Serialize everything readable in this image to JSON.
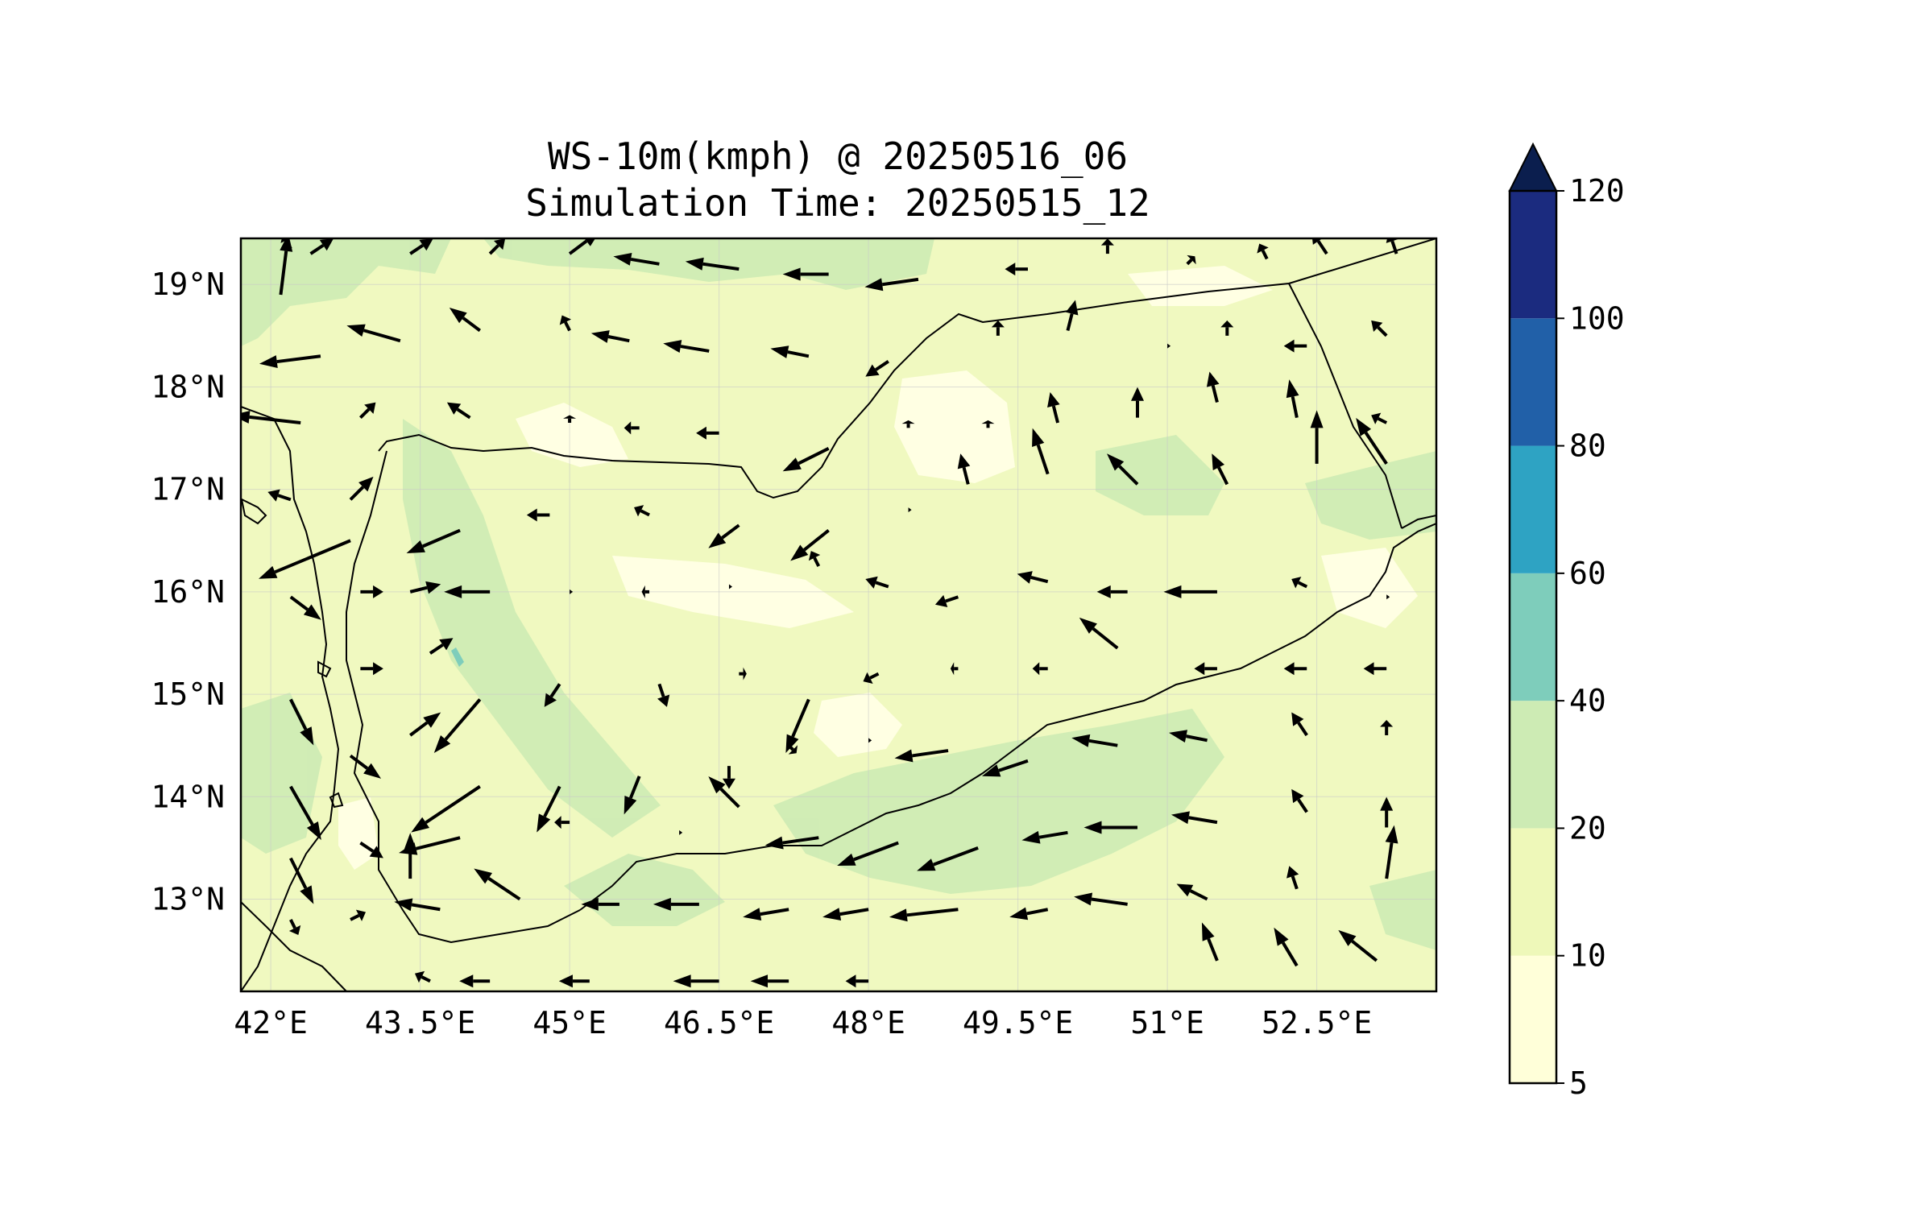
{
  "title": {
    "line1": "WS-10m(kmph) @ 20250516_06",
    "line2": "Simulation Time: 20250515_12"
  },
  "map": {
    "lon_range": [
      41.7,
      53.7
    ],
    "lat_range": [
      12.1,
      19.45
    ],
    "lon_ticks": [
      42,
      43.5,
      45,
      46.5,
      48,
      49.5,
      51,
      52.5
    ],
    "lon_tick_labels": [
      "42°E",
      "43.5°E",
      "45°E",
      "46.5°E",
      "48°E",
      "49.5°E",
      "51°E",
      "52.5°E"
    ],
    "lat_ticks": [
      13,
      14,
      15,
      16,
      17,
      18,
      19
    ],
    "lat_tick_labels": [
      "13°N",
      "14°N",
      "15°N",
      "16°N",
      "17°N",
      "18°N",
      "19°N"
    ],
    "background_color": "#f0f9c0"
  },
  "colorbar": {
    "levels": [
      5,
      10,
      20,
      40,
      60,
      80,
      100,
      120
    ],
    "labels": [
      "5",
      "10",
      "20",
      "40",
      "60",
      "80",
      "100",
      "120"
    ],
    "colors": [
      "#ffffd9",
      "#eef8b9",
      "#cdebb4",
      "#7ecdbb",
      "#2ea3c3",
      "#2160a8",
      "#1b2b7f"
    ],
    "extend_color": "#0b1e4e"
  },
  "wind_vectors": [
    {
      "lon": 42.1,
      "lat": 18.9,
      "u": 1,
      "v": 8
    },
    {
      "lon": 42.5,
      "lat": 18.3,
      "u": -8,
      "v": -1
    },
    {
      "lon": 43.3,
      "lat": 18.45,
      "u": -7,
      "v": 2
    },
    {
      "lon": 44.1,
      "lat": 18.55,
      "u": -4,
      "v": 3
    },
    {
      "lon": 45.0,
      "lat": 18.55,
      "u": -1,
      "v": 2
    },
    {
      "lon": 45.6,
      "lat": 18.45,
      "u": -5,
      "v": 1
    },
    {
      "lon": 46.4,
      "lat": 18.35,
      "u": -6,
      "v": 1
    },
    {
      "lon": 47.4,
      "lat": 18.3,
      "u": -5,
      "v": 1
    },
    {
      "lon": 48.2,
      "lat": 18.25,
      "u": -3,
      "v": -2
    },
    {
      "lon": 49.3,
      "lat": 18.5,
      "u": 0,
      "v": 2
    },
    {
      "lon": 50.0,
      "lat": 18.55,
      "u": 1,
      "v": 4
    },
    {
      "lon": 51.0,
      "lat": 18.4,
      "u": 0,
      "v": 0
    },
    {
      "lon": 51.6,
      "lat": 18.5,
      "u": 0,
      "v": 2
    },
    {
      "lon": 52.4,
      "lat": 18.4,
      "u": -3,
      "v": 0
    },
    {
      "lon": 53.2,
      "lat": 18.5,
      "u": -2,
      "v": 2
    },
    {
      "lon": 42.2,
      "lat": 19.35,
      "u": -1,
      "v": 2
    },
    {
      "lon": 42.4,
      "lat": 19.3,
      "u": 3,
      "v": 2
    },
    {
      "lon": 43.4,
      "lat": 19.3,
      "u": 3,
      "v": 2
    },
    {
      "lon": 44.2,
      "lat": 19.3,
      "u": 2,
      "v": 2
    },
    {
      "lon": 45.0,
      "lat": 19.3,
      "u": 4,
      "v": 3
    },
    {
      "lon": 45.9,
      "lat": 19.2,
      "u": -6,
      "v": 1
    },
    {
      "lon": 46.7,
      "lat": 19.15,
      "u": -7,
      "v": 1
    },
    {
      "lon": 47.6,
      "lat": 19.1,
      "u": -6,
      "v": 0
    },
    {
      "lon": 48.5,
      "lat": 19.05,
      "u": -7,
      "v": -1
    },
    {
      "lon": 49.6,
      "lat": 19.15,
      "u": -3,
      "v": 0
    },
    {
      "lon": 50.4,
      "lat": 19.3,
      "u": 0,
      "v": 2
    },
    {
      "lon": 51.2,
      "lat": 19.2,
      "u": 1,
      "v": 1
    },
    {
      "lon": 52.0,
      "lat": 19.25,
      "u": -1,
      "v": 2
    },
    {
      "lon": 52.6,
      "lat": 19.3,
      "u": -2,
      "v": 3
    },
    {
      "lon": 53.3,
      "lat": 19.3,
      "u": -1,
      "v": 3
    },
    {
      "lon": 42.3,
      "lat": 17.65,
      "u": -9,
      "v": 1
    },
    {
      "lon": 42.9,
      "lat": 17.7,
      "u": 2,
      "v": 2
    },
    {
      "lon": 44.0,
      "lat": 17.7,
      "u": -3,
      "v": 2
    },
    {
      "lon": 45.0,
      "lat": 17.65,
      "u": 0,
      "v": 1
    },
    {
      "lon": 45.7,
      "lat": 17.6,
      "u": -2,
      "v": 0
    },
    {
      "lon": 46.5,
      "lat": 17.55,
      "u": -3,
      "v": 0
    },
    {
      "lon": 47.6,
      "lat": 17.4,
      "u": -6,
      "v": -3
    },
    {
      "lon": 48.4,
      "lat": 17.6,
      "u": 0,
      "v": 1
    },
    {
      "lon": 49.2,
      "lat": 17.6,
      "u": 0,
      "v": 1
    },
    {
      "lon": 49.9,
      "lat": 17.65,
      "u": -1,
      "v": 4
    },
    {
      "lon": 50.7,
      "lat": 17.7,
      "u": 0,
      "v": 4
    },
    {
      "lon": 51.5,
      "lat": 17.85,
      "u": -1,
      "v": 4
    },
    {
      "lon": 52.3,
      "lat": 17.7,
      "u": -1,
      "v": 5
    },
    {
      "lon": 53.2,
      "lat": 17.65,
      "u": -2,
      "v": 1
    },
    {
      "lon": 42.2,
      "lat": 16.9,
      "u": -3,
      "v": 1
    },
    {
      "lon": 42.8,
      "lat": 16.9,
      "u": 3,
      "v": 3
    },
    {
      "lon": 42.8,
      "lat": 16.5,
      "u": -12,
      "v": -5
    },
    {
      "lon": 43.9,
      "lat": 16.6,
      "u": -7,
      "v": -3
    },
    {
      "lon": 44.8,
      "lat": 16.75,
      "u": -3,
      "v": 0
    },
    {
      "lon": 45.8,
      "lat": 16.75,
      "u": -2,
      "v": 1
    },
    {
      "lon": 46.7,
      "lat": 16.65,
      "u": -4,
      "v": -3
    },
    {
      "lon": 47.6,
      "lat": 16.6,
      "u": -5,
      "v": -4
    },
    {
      "lon": 48.4,
      "lat": 16.8,
      "u": 0,
      "v": 0
    },
    {
      "lon": 49.0,
      "lat": 17.05,
      "u": -1,
      "v": 4
    },
    {
      "lon": 49.8,
      "lat": 17.15,
      "u": -2,
      "v": 6
    },
    {
      "lon": 50.7,
      "lat": 17.05,
      "u": -4,
      "v": 4
    },
    {
      "lon": 51.6,
      "lat": 17.05,
      "u": -2,
      "v": 4
    },
    {
      "lon": 52.5,
      "lat": 17.25,
      "u": 0,
      "v": 7
    },
    {
      "lon": 53.2,
      "lat": 17.25,
      "u": -4,
      "v": 6
    },
    {
      "lon": 42.2,
      "lat": 15.95,
      "u": 4,
      "v": -3
    },
    {
      "lon": 42.9,
      "lat": 16.0,
      "u": 3,
      "v": 0
    },
    {
      "lon": 43.4,
      "lat": 16.0,
      "u": 4,
      "v": 1
    },
    {
      "lon": 44.2,
      "lat": 16.0,
      "u": -6,
      "v": 0
    },
    {
      "lon": 45.0,
      "lat": 16.0,
      "u": 0,
      "v": 0
    },
    {
      "lon": 45.8,
      "lat": 16.0,
      "u": -1,
      "v": 0
    },
    {
      "lon": 46.6,
      "lat": 16.05,
      "u": 0,
      "v": 0
    },
    {
      "lon": 47.5,
      "lat": 16.25,
      "u": -1,
      "v": 2
    },
    {
      "lon": 48.2,
      "lat": 16.05,
      "u": -3,
      "v": 1
    },
    {
      "lon": 48.9,
      "lat": 15.95,
      "u": -3,
      "v": -1
    },
    {
      "lon": 49.8,
      "lat": 16.1,
      "u": -4,
      "v": 1
    },
    {
      "lon": 50.6,
      "lat": 16.0,
      "u": -4,
      "v": 0
    },
    {
      "lon": 51.5,
      "lat": 16.0,
      "u": -7,
      "v": 0
    },
    {
      "lon": 52.4,
      "lat": 16.05,
      "u": -2,
      "v": 1
    },
    {
      "lon": 53.2,
      "lat": 15.95,
      "u": 0,
      "v": 0
    },
    {
      "lon": 42.2,
      "lat": 14.95,
      "u": 3,
      "v": -6
    },
    {
      "lon": 42.9,
      "lat": 15.25,
      "u": 3,
      "v": 0
    },
    {
      "lon": 43.6,
      "lat": 15.4,
      "u": 3,
      "v": 2
    },
    {
      "lon": 44.1,
      "lat": 14.95,
      "u": -6,
      "v": -7
    },
    {
      "lon": 44.9,
      "lat": 15.1,
      "u": -2,
      "v": -3
    },
    {
      "lon": 45.9,
      "lat": 15.1,
      "u": 1,
      "v": -3
    },
    {
      "lon": 46.7,
      "lat": 15.2,
      "u": 1,
      "v": 0
    },
    {
      "lon": 47.4,
      "lat": 14.95,
      "u": -3,
      "v": -7
    },
    {
      "lon": 48.1,
      "lat": 15.2,
      "u": -2,
      "v": -1
    },
    {
      "lon": 48.9,
      "lat": 15.25,
      "u": -1,
      "v": 0
    },
    {
      "lon": 49.8,
      "lat": 15.25,
      "u": -2,
      "v": 0
    },
    {
      "lon": 50.5,
      "lat": 15.45,
      "u": -5,
      "v": 4
    },
    {
      "lon": 51.5,
      "lat": 15.25,
      "u": -3,
      "v": 0
    },
    {
      "lon": 52.4,
      "lat": 15.25,
      "u": -3,
      "v": 0
    },
    {
      "lon": 53.2,
      "lat": 15.25,
      "u": -3,
      "v": 0
    },
    {
      "lon": 42.2,
      "lat": 14.1,
      "u": 4,
      "v": -7
    },
    {
      "lon": 42.8,
      "lat": 14.4,
      "u": 4,
      "v": -3
    },
    {
      "lon": 43.4,
      "lat": 14.6,
      "u": 4,
      "v": 3
    },
    {
      "lon": 44.1,
      "lat": 14.1,
      "u": -9,
      "v": -6
    },
    {
      "lon": 44.9,
      "lat": 14.1,
      "u": -3,
      "v": -6
    },
    {
      "lon": 45.7,
      "lat": 14.2,
      "u": -2,
      "v": -5
    },
    {
      "lon": 46.6,
      "lat": 14.3,
      "u": 0,
      "v": -3
    },
    {
      "lon": 47.2,
      "lat": 14.5,
      "u": 1,
      "v": -1
    },
    {
      "lon": 48.0,
      "lat": 14.55,
      "u": 0,
      "v": 0
    },
    {
      "lon": 48.8,
      "lat": 14.45,
      "u": -7,
      "v": -1
    },
    {
      "lon": 49.6,
      "lat": 14.35,
      "u": -6,
      "v": -2
    },
    {
      "lon": 50.5,
      "lat": 14.5,
      "u": -6,
      "v": 1
    },
    {
      "lon": 51.4,
      "lat": 14.55,
      "u": -5,
      "v": 1
    },
    {
      "lon": 52.4,
      "lat": 14.6,
      "u": -2,
      "v": 3
    },
    {
      "lon": 53.2,
      "lat": 14.6,
      "u": 0,
      "v": 2
    },
    {
      "lon": 42.2,
      "lat": 13.4,
      "u": 3,
      "v": -6
    },
    {
      "lon": 42.9,
      "lat": 13.55,
      "u": 3,
      "v": -2
    },
    {
      "lon": 43.4,
      "lat": 13.2,
      "u": 0,
      "v": 6
    },
    {
      "lon": 43.9,
      "lat": 13.6,
      "u": -8,
      "v": -2
    },
    {
      "lon": 45.0,
      "lat": 13.75,
      "u": -2,
      "v": 0
    },
    {
      "lon": 46.1,
      "lat": 13.65,
      "u": 0,
      "v": 0
    },
    {
      "lon": 46.7,
      "lat": 13.9,
      "u": -4,
      "v": 4
    },
    {
      "lon": 47.5,
      "lat": 13.6,
      "u": -7,
      "v": -1
    },
    {
      "lon": 48.3,
      "lat": 13.55,
      "u": -8,
      "v": -3
    },
    {
      "lon": 49.1,
      "lat": 13.5,
      "u": -8,
      "v": -3
    },
    {
      "lon": 50.0,
      "lat": 13.65,
      "u": -6,
      "v": -1
    },
    {
      "lon": 50.7,
      "lat": 13.7,
      "u": -7,
      "v": 0
    },
    {
      "lon": 51.5,
      "lat": 13.75,
      "u": -6,
      "v": 1
    },
    {
      "lon": 52.4,
      "lat": 13.85,
      "u": -2,
      "v": 3
    },
    {
      "lon": 53.2,
      "lat": 13.7,
      "u": 0,
      "v": 4
    },
    {
      "lon": 42.2,
      "lat": 12.8,
      "u": 1,
      "v": -2
    },
    {
      "lon": 42.8,
      "lat": 12.8,
      "u": 2,
      "v": 1
    },
    {
      "lon": 43.7,
      "lat": 12.9,
      "u": -6,
      "v": 1
    },
    {
      "lon": 44.5,
      "lat": 13.0,
      "u": -6,
      "v": 4
    },
    {
      "lon": 45.5,
      "lat": 12.95,
      "u": -5,
      "v": 0
    },
    {
      "lon": 46.3,
      "lat": 12.95,
      "u": -6,
      "v": 0
    },
    {
      "lon": 47.2,
      "lat": 12.9,
      "u": -6,
      "v": -1
    },
    {
      "lon": 48.0,
      "lat": 12.9,
      "u": -6,
      "v": -1
    },
    {
      "lon": 48.9,
      "lat": 12.9,
      "u": -9,
      "v": -1
    },
    {
      "lon": 49.8,
      "lat": 12.9,
      "u": -5,
      "v": -1
    },
    {
      "lon": 50.6,
      "lat": 12.95,
      "u": -7,
      "v": 1
    },
    {
      "lon": 51.4,
      "lat": 13.0,
      "u": -4,
      "v": 2
    },
    {
      "lon": 52.3,
      "lat": 13.1,
      "u": -1,
      "v": 3
    },
    {
      "lon": 53.2,
      "lat": 13.2,
      "u": 1,
      "v": 7
    },
    {
      "lon": 43.6,
      "lat": 12.2,
      "u": -2,
      "v": 1
    },
    {
      "lon": 44.2,
      "lat": 12.2,
      "u": -4,
      "v": 0
    },
    {
      "lon": 45.2,
      "lat": 12.2,
      "u": -4,
      "v": 0
    },
    {
      "lon": 46.5,
      "lat": 12.2,
      "u": -6,
      "v": 0
    },
    {
      "lon": 47.2,
      "lat": 12.2,
      "u": -5,
      "v": 0
    },
    {
      "lon": 48.0,
      "lat": 12.2,
      "u": -3,
      "v": 0
    },
    {
      "lon": 51.5,
      "lat": 12.4,
      "u": -2,
      "v": 5
    },
    {
      "lon": 52.3,
      "lat": 12.35,
      "u": -3,
      "v": 5
    },
    {
      "lon": 53.1,
      "lat": 12.4,
      "u": -5,
      "v": 4
    }
  ]
}
